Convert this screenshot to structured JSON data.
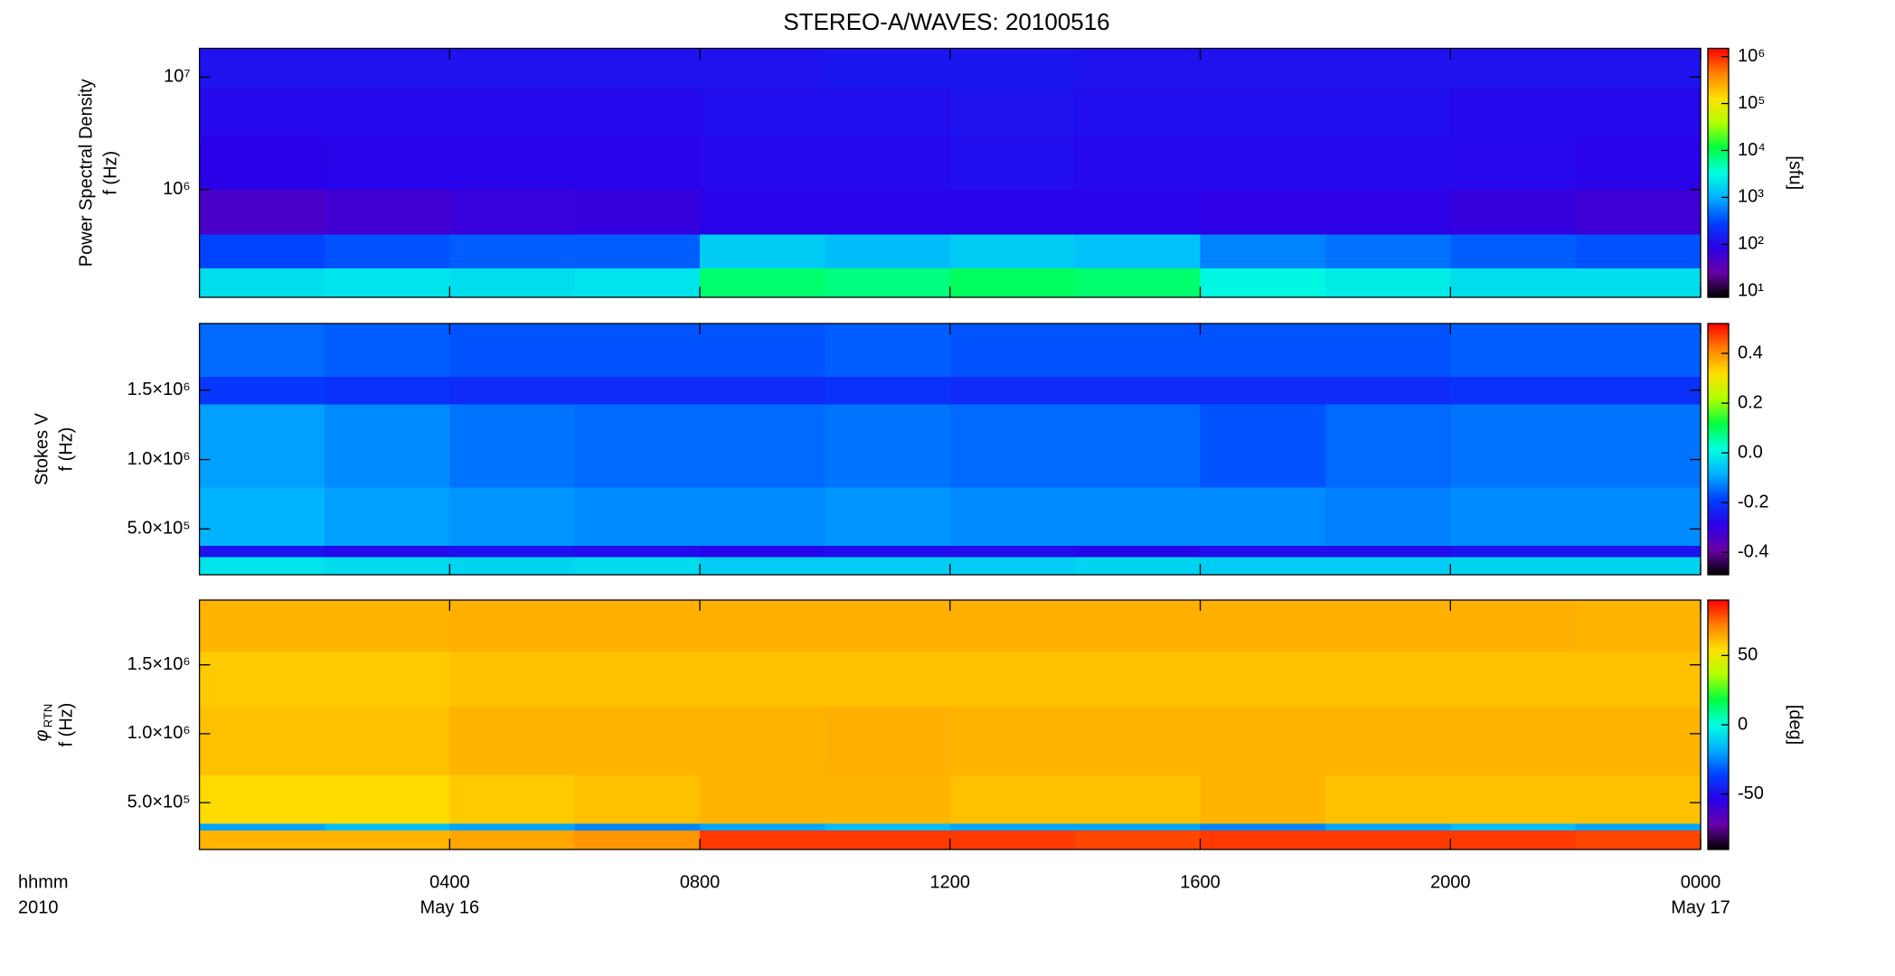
{
  "chart_data": [
    {
      "type": "heatmap",
      "title": "STEREO-A/WAVES: 20100516",
      "ylabel": "Power Spectral Density",
      "ylabel2": "f (Hz)",
      "ylog": true,
      "ylim": [
        110000,
        18000000
      ],
      "yticks": [
        {
          "value": 1000000,
          "label": "10⁶"
        },
        {
          "value": 10000000,
          "label": "10⁷"
        }
      ],
      "x_edges": [
        0,
        2,
        4,
        6,
        8,
        10,
        12,
        14,
        16,
        18,
        20,
        22,
        24
      ],
      "y_edges": [
        110000,
        200000,
        400000,
        1000000,
        3000000,
        8000000,
        18000000
      ],
      "values": [
        [
          2000,
          2200,
          2000,
          2200,
          8000,
          7000,
          9000,
          8000,
          3000,
          2500,
          2000,
          2000
        ],
        [
          300,
          350,
          400,
          400,
          1500,
          1200,
          1500,
          1300,
          600,
          500,
          400,
          350
        ],
        [
          45,
          55,
          65,
          70,
          90,
          90,
          90,
          90,
          80,
          80,
          70,
          60
        ],
        [
          85,
          90,
          90,
          90,
          100,
          100,
          110,
          100,
          100,
          100,
          95,
          90
        ],
        [
          100,
          100,
          100,
          100,
          110,
          110,
          120,
          110,
          110,
          110,
          100,
          100
        ],
        [
          120,
          120,
          120,
          120,
          120,
          130,
          130,
          120,
          120,
          120,
          120,
          120
        ]
      ],
      "clog": true,
      "clim": [
        7.4,
        1500000
      ],
      "cticks": [
        {
          "value": 10,
          "label": "10¹"
        },
        {
          "value": 100,
          "label": "10²"
        },
        {
          "value": 1000,
          "label": "10³"
        },
        {
          "value": 10000,
          "label": "10⁴"
        },
        {
          "value": 100000,
          "label": "10⁵"
        },
        {
          "value": 1000000,
          "label": "10⁶"
        }
      ],
      "clabel": "[sfu]",
      "colormap": [
        "#000000",
        "#6a00a8",
        "#2a00e8",
        "#0040ff",
        "#00b0ff",
        "#00ffe0",
        "#00ff40",
        "#b0ff00",
        "#ffe000",
        "#ff8000",
        "#ff0000"
      ]
    },
    {
      "type": "heatmap",
      "ylabel": "Stokes V",
      "ylabel2": "f (Hz)",
      "ylog": false,
      "ylim": [
        170000,
        1980000
      ],
      "yticks": [
        {
          "value": 500000,
          "label": "5.0×10⁵"
        },
        {
          "value": 1000000,
          "label": "1.0×10⁶"
        },
        {
          "value": 1500000,
          "label": "1.5×10⁶"
        }
      ],
      "x_edges": [
        0,
        2,
        4,
        6,
        8,
        10,
        12,
        14,
        16,
        18,
        20,
        22,
        24
      ],
      "y_edges": [
        170000,
        300000,
        380000,
        800000,
        1400000,
        1600000,
        1980000
      ],
      "values": [
        [
          -0.02,
          -0.03,
          -0.04,
          -0.03,
          -0.05,
          -0.05,
          -0.05,
          -0.04,
          -0.05,
          -0.05,
          -0.04,
          -0.04
        ],
        [
          -0.26,
          -0.27,
          -0.26,
          -0.27,
          -0.28,
          -0.27,
          -0.27,
          -0.28,
          -0.27,
          -0.27,
          -0.26,
          -0.26
        ],
        [
          -0.08,
          -0.1,
          -0.11,
          -0.12,
          -0.12,
          -0.11,
          -0.12,
          -0.12,
          -0.12,
          -0.13,
          -0.12,
          -0.12
        ],
        [
          -0.1,
          -0.12,
          -0.14,
          -0.15,
          -0.15,
          -0.14,
          -0.15,
          -0.15,
          -0.17,
          -0.15,
          -0.14,
          -0.14
        ],
        [
          -0.2,
          -0.21,
          -0.22,
          -0.22,
          -0.22,
          -0.21,
          -0.22,
          -0.22,
          -0.22,
          -0.22,
          -0.21,
          -0.21
        ],
        [
          -0.15,
          -0.16,
          -0.17,
          -0.17,
          -0.17,
          -0.16,
          -0.17,
          -0.17,
          -0.17,
          -0.17,
          -0.16,
          -0.16
        ]
      ],
      "clog": false,
      "clim": [
        -0.49,
        0.52
      ],
      "cticks": [
        -0.4,
        -0.2,
        {
          "value": 0,
          "label": "0.0"
        },
        0.2,
        0.4
      ],
      "colormap": [
        "#000000",
        "#6a00a8",
        "#2a00e8",
        "#0040ff",
        "#00b0ff",
        "#00ffe0",
        "#00ff40",
        "#b0ff00",
        "#ffe000",
        "#ff8000",
        "#ff0000"
      ]
    },
    {
      "type": "heatmap",
      "ylabel": "φ",
      "ylabel_subscript": "RTN",
      "ylabel2": "f (Hz)",
      "ylog": false,
      "ylim": [
        160000,
        1970000
      ],
      "yticks": [
        {
          "value": 500000,
          "label": "5.0×10⁵"
        },
        {
          "value": 1000000,
          "label": "1.0×10⁶"
        },
        {
          "value": 1500000,
          "label": "1.5×10⁶"
        }
      ],
      "x_edges": [
        0,
        2,
        4,
        6,
        8,
        10,
        12,
        14,
        16,
        18,
        20,
        22,
        24
      ],
      "y_edges": [
        160000,
        300000,
        350000,
        700000,
        1200000,
        1600000,
        1970000
      ],
      "values": [
        [
          62,
          62,
          65,
          68,
          82,
          82,
          82,
          80,
          82,
          82,
          82,
          80
        ],
        [
          -20,
          -15,
          -20,
          -25,
          -20,
          -15,
          -20,
          -20,
          -25,
          -20,
          -15,
          -20
        ],
        [
          55,
          55,
          58,
          60,
          62,
          62,
          60,
          60,
          62,
          60,
          60,
          60
        ],
        [
          60,
          60,
          62,
          62,
          62,
          63,
          62,
          62,
          62,
          62,
          62,
          62
        ],
        [
          58,
          58,
          60,
          60,
          60,
          60,
          60,
          60,
          60,
          60,
          60,
          60
        ],
        [
          62,
          62,
          63,
          63,
          63,
          63,
          63,
          63,
          63,
          63,
          63,
          62
        ]
      ],
      "clog": false,
      "clim": [
        -90,
        90
      ],
      "cticks": [
        -50,
        0,
        50
      ],
      "clabel": "[deg]",
      "colormap": [
        "#000000",
        "#6a00a8",
        "#2a00e8",
        "#0040ff",
        "#00b0ff",
        "#00ffe0",
        "#00ff40",
        "#b0ff00",
        "#ffe000",
        "#ff8000",
        "#ff0000"
      ],
      "xlim": [
        0,
        24
      ],
      "xticks": [
        {
          "value": 4,
          "label": "0400"
        },
        {
          "value": 8,
          "label": "0800"
        },
        {
          "value": 12,
          "label": "1200"
        },
        {
          "value": 16,
          "label": "1600"
        },
        {
          "value": 20,
          "label": "2000"
        },
        {
          "value": 24,
          "label": "0000"
        }
      ],
      "xtick_dates": [
        {
          "value": 4,
          "label": "May 16"
        },
        {
          "value": 24,
          "label": "May 17"
        }
      ],
      "xlabel": "hhmm",
      "xlabel_year": "2010"
    }
  ]
}
